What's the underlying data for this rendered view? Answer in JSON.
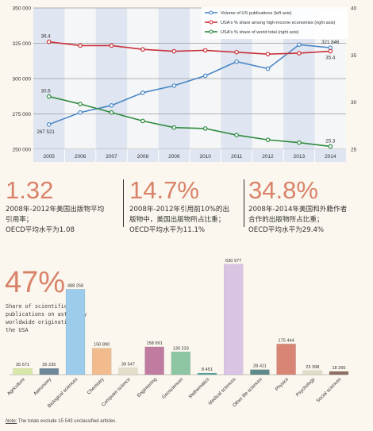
{
  "chart_data": [
    {
      "type": "line",
      "x": [
        "2005",
        "2006",
        "2007",
        "2008",
        "2009",
        "2010",
        "2011",
        "2012",
        "2013",
        "2014"
      ],
      "left_axis": {
        "ylim": [
          250000,
          350000
        ],
        "ticks": [
          "250 000",
          "275 000",
          "300 000",
          "325 000",
          "350 000"
        ]
      },
      "right_axis": {
        "ylim": [
          25,
          40
        ],
        "ticks": [
          "25",
          "30",
          "35",
          "40"
        ]
      },
      "legend_placement": "top-right",
      "series": [
        {
          "name": "Volume of US publications (left axis)",
          "axis": "left",
          "color": "#4a86c5",
          "values": [
            267521,
            276000,
            281000,
            290000,
            295000,
            302000,
            312000,
            307000,
            324000,
            321846
          ],
          "labels": {
            "0": "267 521",
            "9": "321 846"
          }
        },
        {
          "name": "USA's % share among high-income economies (right axis)",
          "axis": "right",
          "color": "#c8323a",
          "values": [
            36.4,
            36.0,
            36.0,
            35.6,
            35.4,
            35.5,
            35.3,
            35.1,
            35.2,
            35.4
          ],
          "labels": {
            "0": "36.4",
            "9": "35.4"
          }
        },
        {
          "name": "USA's % share of world total (right axis)",
          "axis": "right",
          "color": "#2e8b3e",
          "values": [
            30.6,
            29.8,
            28.9,
            28.0,
            27.3,
            27.2,
            26.5,
            26.0,
            25.7,
            25.3
          ],
          "labels": {
            "0": "30.6",
            "9": "25.3"
          }
        }
      ],
      "grid": "horizontal"
    },
    {
      "type": "bar",
      "categories": [
        "Agriculture",
        "Astronomy",
        "Biological sciences",
        "Chemistry",
        "Computer science",
        "Engineering",
        "Geosciences",
        "Mathematics",
        "Medical sciences",
        "Other life sciences",
        "Physics",
        "Psychology",
        "Social sciences"
      ],
      "values": [
        35671,
        35235,
        488258,
        150800,
        39547,
        158991,
        130233,
        8451,
        630977,
        28411,
        175444,
        23398,
        18260
      ],
      "value_labels": [
        "35 671",
        "35 235",
        "488 258",
        "150 800",
        "39 547",
        "158 991",
        "130 233",
        "8 451",
        "630 977",
        "28 411",
        "175 444",
        "23 398",
        "18 260"
      ],
      "colors": [
        "#d8e6a8",
        "#6d8798",
        "#9ccbeb",
        "#f2bb8e",
        "#e4dfca",
        "#c07ba0",
        "#8ec5a3",
        "#5aa8a2",
        "#d9c4e3",
        "#5f8a8a",
        "#d98575",
        "#e0dcc6",
        "#8e7064"
      ],
      "ylim": [
        0,
        680000
      ]
    }
  ],
  "stats": [
    {
      "value": "1.32",
      "desc": "2008年-2012年美国出版物平均\n引用率；\nOECD平均水平为1.08"
    },
    {
      "value": "14.7%",
      "desc": "2008年-2012年引用前10%的出\n版物中，美国出版物所占比重；\nOECD平均水平为11.1%"
    },
    {
      "value": "34.8%",
      "desc": "2008年-2014年美国和外籍作者\n合作的出版物所占比重；\nOECD平均水平为29.4%"
    }
  ],
  "astro_share": {
    "value": "47%",
    "desc": "Share of scientific publications on astronomy worldwide originating in the USA"
  },
  "note": {
    "label": "Note:",
    "text": "The totals exclude 15 543 unclassified articles."
  }
}
